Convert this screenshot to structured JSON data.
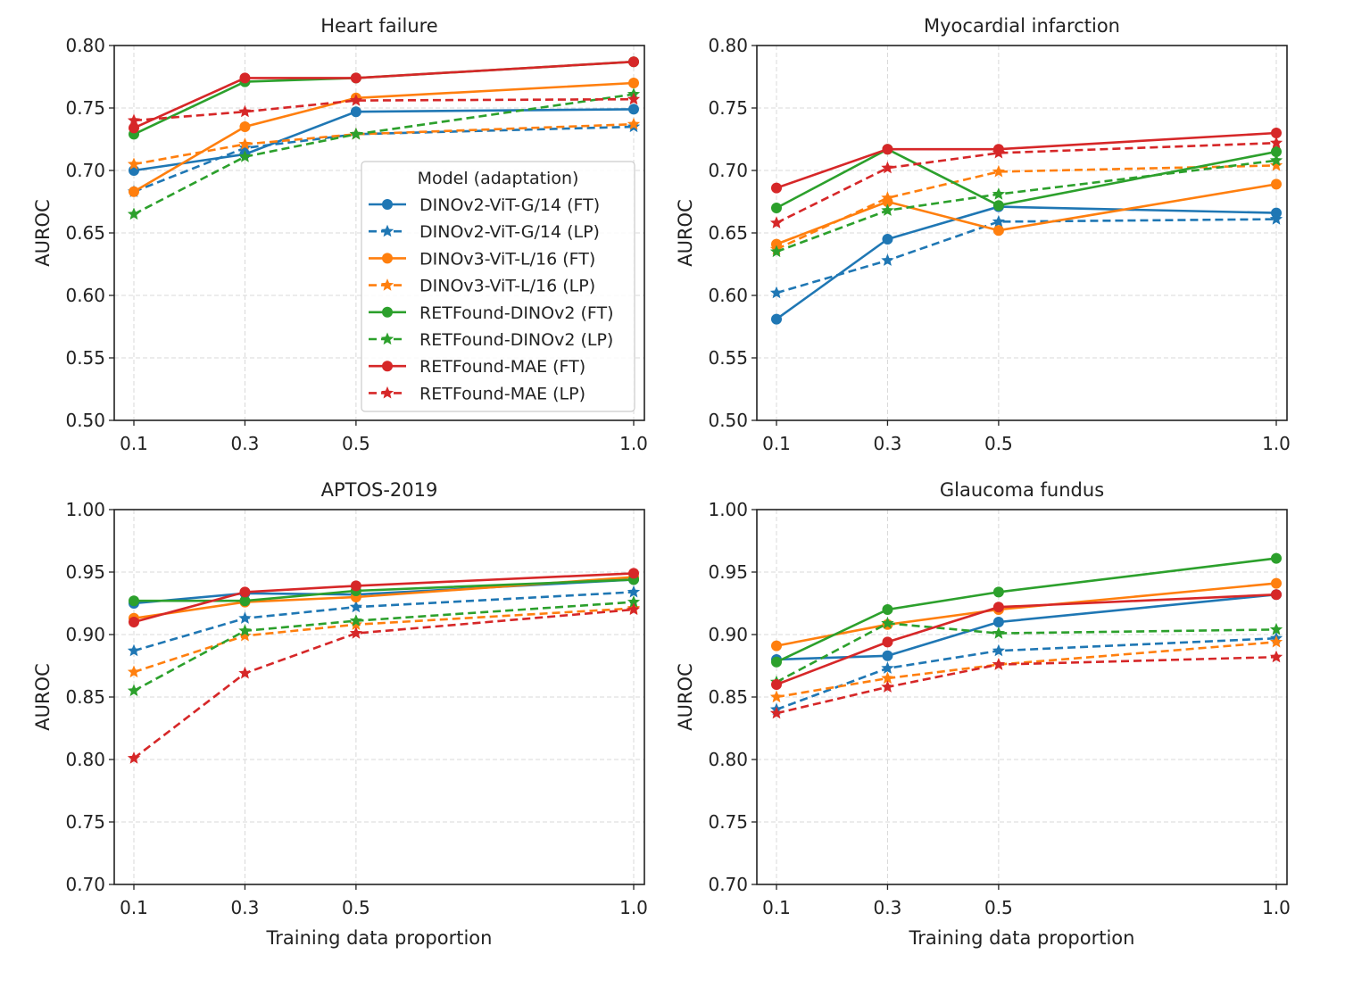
{
  "legend": {
    "title": "Model (adaptation)",
    "placement": "lower-right of first panel"
  },
  "series_styles": [
    {
      "name": "DINOv2-ViT-G/14 (FT)",
      "color": "#1f77b4",
      "dash": false,
      "marker": "circle"
    },
    {
      "name": "DINOv2-ViT-G/14 (LP)",
      "color": "#1f77b4",
      "dash": true,
      "marker": "star"
    },
    {
      "name": "DINOv3-ViT-L/16 (FT)",
      "color": "#ff7f0e",
      "dash": false,
      "marker": "circle"
    },
    {
      "name": "DINOv3-ViT-L/16 (LP)",
      "color": "#ff7f0e",
      "dash": true,
      "marker": "star"
    },
    {
      "name": "RETFound-DINOv2 (FT)",
      "color": "#2ca02c",
      "dash": false,
      "marker": "circle"
    },
    {
      "name": "RETFound-DINOv2 (LP)",
      "color": "#2ca02c",
      "dash": true,
      "marker": "star"
    },
    {
      "name": "RETFound-MAE (FT)",
      "color": "#d62728",
      "dash": false,
      "marker": "circle"
    },
    {
      "name": "RETFound-MAE (LP)",
      "color": "#d62728",
      "dash": true,
      "marker": "star"
    }
  ],
  "chart_data": [
    {
      "type": "line",
      "title": "Heart failure",
      "xlabel": "",
      "ylabel": "AUROC",
      "x": [
        0.1,
        0.3,
        0.5,
        1.0
      ],
      "x_ticks": [
        "0.1",
        "0.3",
        "0.5",
        "1.0"
      ],
      "ylim": [
        0.5,
        0.8
      ],
      "y_ticks": [
        "0.50",
        "0.55",
        "0.60",
        "0.65",
        "0.70",
        "0.75",
        "0.80"
      ],
      "grid": true,
      "series": [
        {
          "name": "DINOv2-ViT-G/14 (FT)",
          "values": [
            0.7,
            0.713,
            0.747,
            0.749
          ]
        },
        {
          "name": "DINOv2-ViT-G/14 (LP)",
          "values": [
            0.683,
            0.718,
            0.729,
            0.735
          ]
        },
        {
          "name": "DINOv3-ViT-L/16 (FT)",
          "values": [
            0.683,
            0.735,
            0.758,
            0.77
          ]
        },
        {
          "name": "DINOv3-ViT-L/16 (LP)",
          "values": [
            0.705,
            0.721,
            0.729,
            0.737
          ]
        },
        {
          "name": "RETFound-DINOv2 (FT)",
          "values": [
            0.729,
            0.771,
            0.774,
            0.787
          ]
        },
        {
          "name": "RETFound-DINOv2 (LP)",
          "values": [
            0.665,
            0.711,
            0.729,
            0.761
          ]
        },
        {
          "name": "RETFound-MAE (FT)",
          "values": [
            0.734,
            0.774,
            0.774,
            0.787
          ]
        },
        {
          "name": "RETFound-MAE (LP)",
          "values": [
            0.74,
            0.747,
            0.756,
            0.757
          ]
        }
      ]
    },
    {
      "type": "line",
      "title": "Myocardial infarction",
      "xlabel": "",
      "ylabel": "AUROC",
      "x": [
        0.1,
        0.3,
        0.5,
        1.0
      ],
      "x_ticks": [
        "0.1",
        "0.3",
        "0.5",
        "1.0"
      ],
      "ylim": [
        0.5,
        0.8
      ],
      "y_ticks": [
        "0.50",
        "0.55",
        "0.60",
        "0.65",
        "0.70",
        "0.75",
        "0.80"
      ],
      "grid": true,
      "series": [
        {
          "name": "DINOv2-ViT-G/14 (FT)",
          "values": [
            0.581,
            0.645,
            0.671,
            0.666
          ]
        },
        {
          "name": "DINOv2-ViT-G/14 (LP)",
          "values": [
            0.602,
            0.628,
            0.659,
            0.661
          ]
        },
        {
          "name": "DINOv3-ViT-L/16 (FT)",
          "values": [
            0.641,
            0.675,
            0.652,
            0.689
          ]
        },
        {
          "name": "DINOv3-ViT-L/16 (LP)",
          "values": [
            0.637,
            0.678,
            0.699,
            0.704
          ]
        },
        {
          "name": "RETFound-DINOv2 (FT)",
          "values": [
            0.67,
            0.717,
            0.672,
            0.715
          ]
        },
        {
          "name": "RETFound-DINOv2 (LP)",
          "values": [
            0.635,
            0.668,
            0.681,
            0.708
          ]
        },
        {
          "name": "RETFound-MAE (FT)",
          "values": [
            0.686,
            0.717,
            0.717,
            0.73
          ]
        },
        {
          "name": "RETFound-MAE (LP)",
          "values": [
            0.658,
            0.702,
            0.714,
            0.722
          ]
        }
      ]
    },
    {
      "type": "line",
      "title": "APTOS-2019",
      "xlabel": "Training data proportion",
      "ylabel": "AUROC",
      "x": [
        0.1,
        0.3,
        0.5,
        1.0
      ],
      "x_ticks": [
        "0.1",
        "0.3",
        "0.5",
        "1.0"
      ],
      "ylim": [
        0.7,
        1.0
      ],
      "y_ticks": [
        "0.70",
        "0.75",
        "0.80",
        "0.85",
        "0.90",
        "0.95",
        "1.00"
      ],
      "grid": true,
      "series": [
        {
          "name": "DINOv2-ViT-G/14 (FT)",
          "values": [
            0.925,
            0.933,
            0.932,
            0.944
          ]
        },
        {
          "name": "DINOv2-ViT-G/14 (LP)",
          "values": [
            0.887,
            0.913,
            0.922,
            0.934
          ]
        },
        {
          "name": "DINOv3-ViT-L/16 (FT)",
          "values": [
            0.913,
            0.926,
            0.93,
            0.946
          ]
        },
        {
          "name": "DINOv3-ViT-L/16 (LP)",
          "values": [
            0.87,
            0.899,
            0.908,
            0.921
          ]
        },
        {
          "name": "RETFound-DINOv2 (FT)",
          "values": [
            0.927,
            0.927,
            0.935,
            0.944
          ]
        },
        {
          "name": "RETFound-DINOv2 (LP)",
          "values": [
            0.855,
            0.903,
            0.911,
            0.926
          ]
        },
        {
          "name": "RETFound-MAE (FT)",
          "values": [
            0.91,
            0.934,
            0.939,
            0.949
          ]
        },
        {
          "name": "RETFound-MAE (LP)",
          "values": [
            0.801,
            0.869,
            0.901,
            0.92
          ]
        }
      ]
    },
    {
      "type": "line",
      "title": "Glaucoma fundus",
      "xlabel": "Training data proportion",
      "ylabel": "AUROC",
      "x": [
        0.1,
        0.3,
        0.5,
        1.0
      ],
      "x_ticks": [
        "0.1",
        "0.3",
        "0.5",
        "1.0"
      ],
      "ylim": [
        0.7,
        1.0
      ],
      "y_ticks": [
        "0.70",
        "0.75",
        "0.80",
        "0.85",
        "0.90",
        "0.95",
        "1.00"
      ],
      "grid": true,
      "series": [
        {
          "name": "DINOv2-ViT-G/14 (FT)",
          "values": [
            0.88,
            0.883,
            0.91,
            0.932
          ]
        },
        {
          "name": "DINOv2-ViT-G/14 (LP)",
          "values": [
            0.84,
            0.873,
            0.887,
            0.897
          ]
        },
        {
          "name": "DINOv3-ViT-L/16 (FT)",
          "values": [
            0.891,
            0.908,
            0.92,
            0.941
          ]
        },
        {
          "name": "DINOv3-ViT-L/16 (LP)",
          "values": [
            0.85,
            0.865,
            0.876,
            0.894
          ]
        },
        {
          "name": "RETFound-DINOv2 (FT)",
          "values": [
            0.878,
            0.92,
            0.934,
            0.961
          ]
        },
        {
          "name": "RETFound-DINOv2 (LP)",
          "values": [
            0.862,
            0.909,
            0.901,
            0.904
          ]
        },
        {
          "name": "RETFound-MAE (FT)",
          "values": [
            0.86,
            0.894,
            0.922,
            0.932
          ]
        },
        {
          "name": "RETFound-MAE (LP)",
          "values": [
            0.837,
            0.858,
            0.876,
            0.882
          ]
        }
      ]
    }
  ]
}
